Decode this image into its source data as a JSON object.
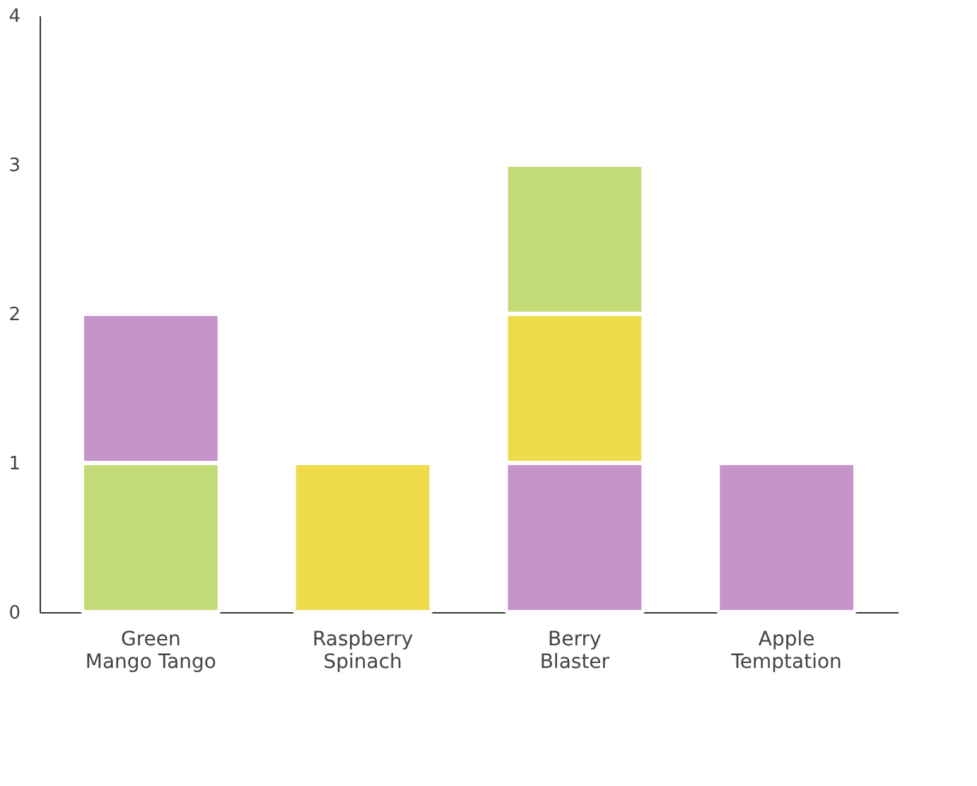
{
  "chart_data": {
    "type": "bar",
    "stacked": true,
    "categories": [
      "Green Mango Tango",
      "Raspberry Spinach",
      "Berry Blaster",
      "Apple Temptation"
    ],
    "series": [
      {
        "values": [
          1,
          1,
          1,
          1
        ],
        "colors": [
          "#c2db78",
          "#f0dc4a",
          "#c594cb",
          "#c594cb"
        ]
      },
      {
        "values": [
          1,
          null,
          1,
          null
        ],
        "colors": [
          "#c594cb",
          null,
          "#f0dc4a",
          null
        ]
      },
      {
        "values": [
          null,
          null,
          1,
          null
        ],
        "colors": [
          null,
          null,
          "#c2db78",
          null
        ]
      }
    ],
    "ylim": [
      0,
      4
    ],
    "yticks": [
      0,
      1,
      2,
      3,
      4
    ],
    "grid": false
  }
}
